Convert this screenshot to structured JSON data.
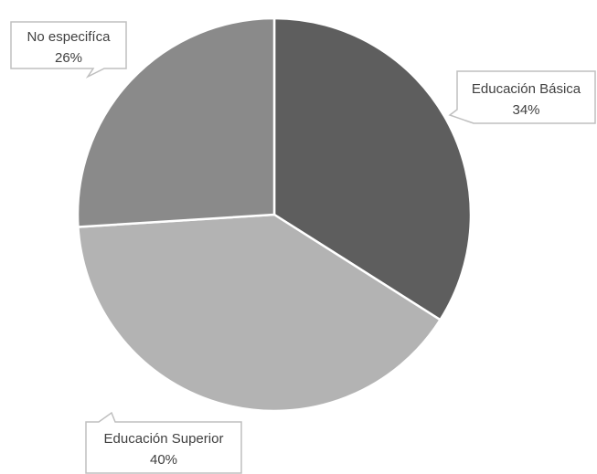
{
  "chart_data": {
    "type": "pie",
    "title": "",
    "legend": "none",
    "slices": [
      {
        "label": "Educación Básica",
        "value": 34,
        "value_label": "34%",
        "color": "#5e5e5e"
      },
      {
        "label": "Educación Superior",
        "value": 40,
        "value_label": "40%",
        "color": "#b3b3b3"
      },
      {
        "label": "No especifíca",
        "value": 26,
        "value_label": "26%",
        "color": "#8a8a8a"
      }
    ]
  }
}
